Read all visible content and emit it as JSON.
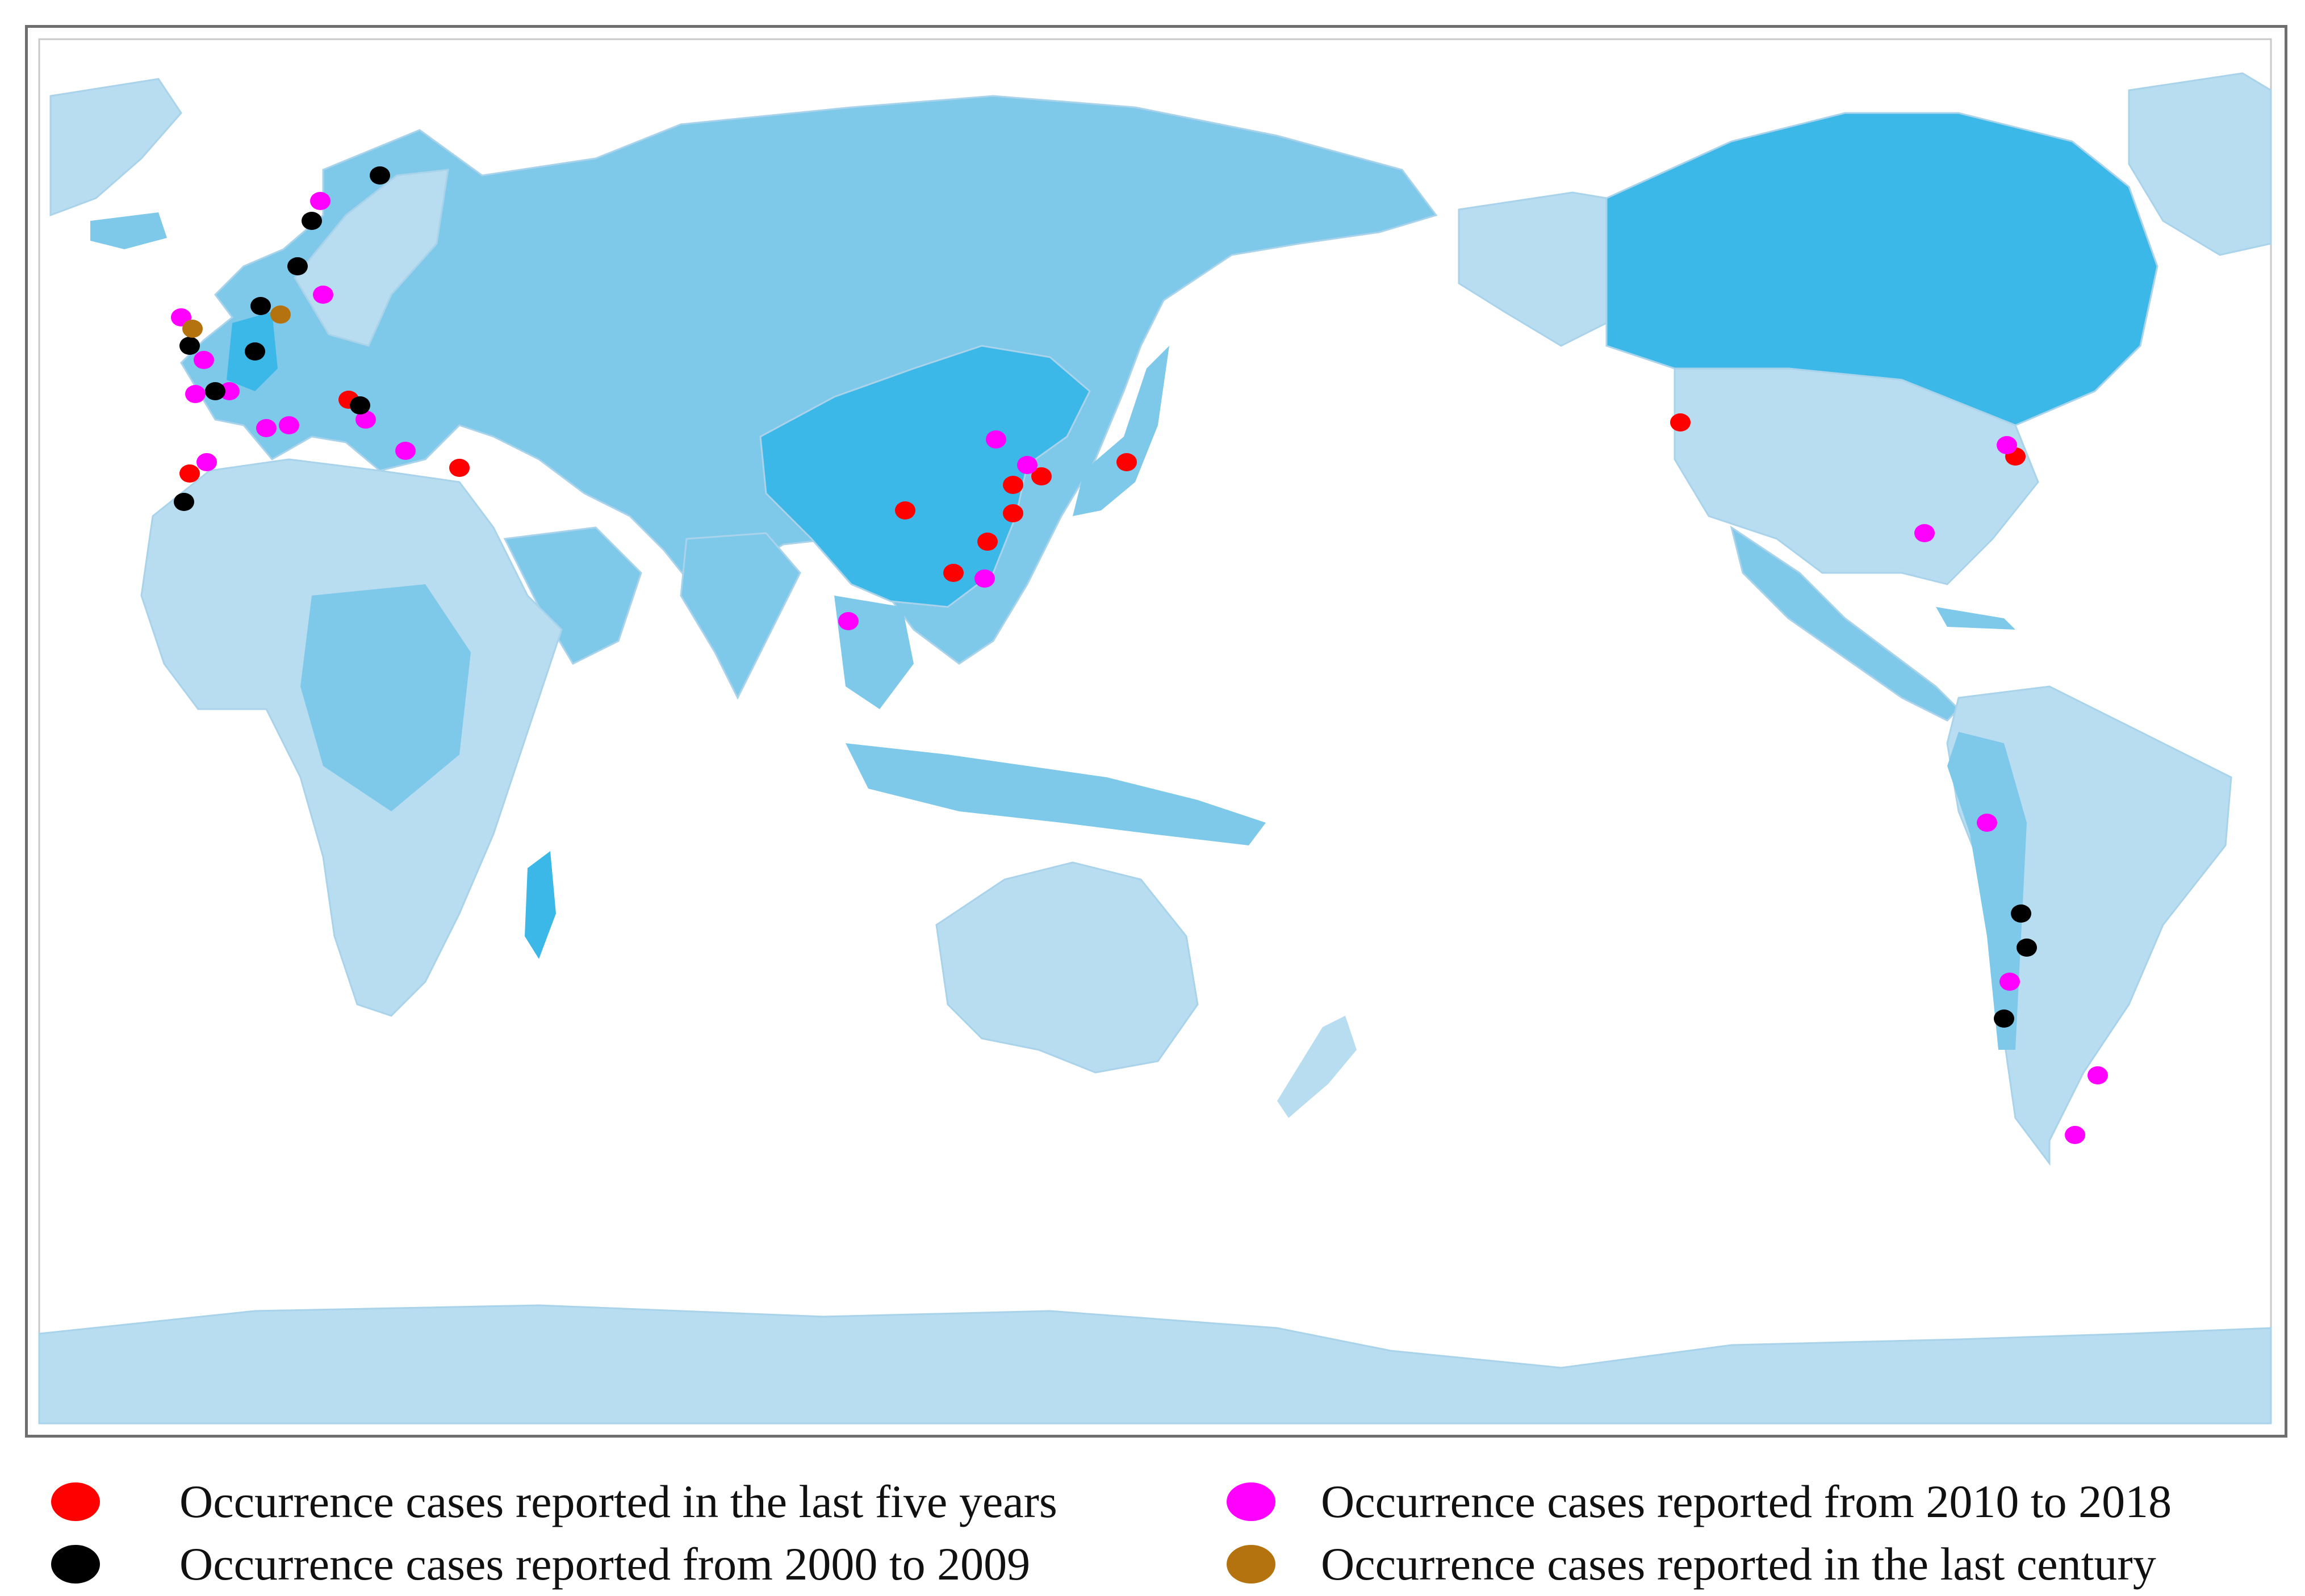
{
  "colors": {
    "land_light": "#b8dcf0",
    "land_medium": "#7ec8ea",
    "land_strong": "#3cb8e8",
    "ocean": "#ffffff",
    "border": "#a9d3ea"
  },
  "legend": [
    {
      "key": "recent",
      "label": "Occurrence cases reported in the last five years",
      "color": "#ff0000"
    },
    {
      "key": "2010_2018",
      "label": "Occurrence cases reported from 2010 to 2018",
      "color": "#ff00ff"
    },
    {
      "key": "2000_2009",
      "label": "Occurrence cases reported from 2000 to 2009",
      "color": "#000000"
    },
    {
      "key": "last_century",
      "label": "Occurrence cases reported in the last century",
      "color": "#b5730f"
    }
  ]
}
